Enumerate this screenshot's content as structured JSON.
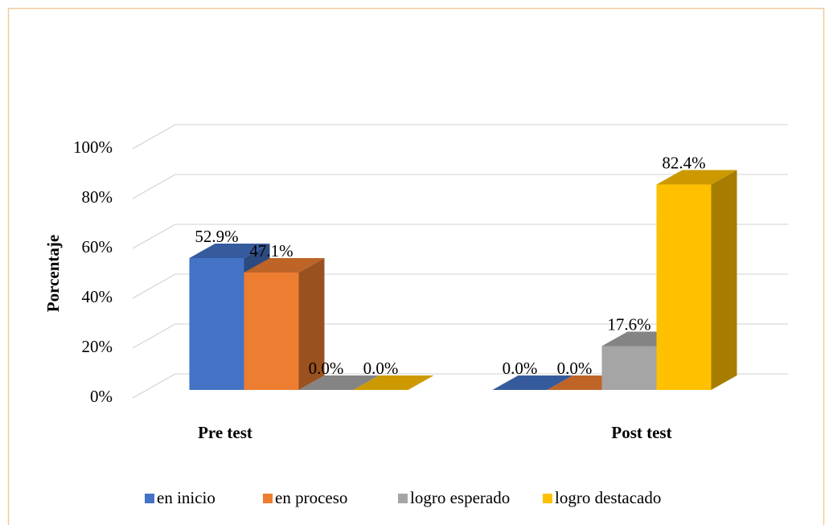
{
  "chart_data": {
    "type": "bar3d",
    "y_label": "Porcentaje",
    "categories": [
      "Pre test",
      "Post test"
    ],
    "series": [
      {
        "name": "en inicio",
        "color": "#4472c4",
        "values": [
          52.9,
          0.0
        ],
        "value_labels": [
          "52.9%",
          "0.0%"
        ]
      },
      {
        "name": "en proceso",
        "color": "#ed7d31",
        "values": [
          47.1,
          0.0
        ],
        "value_labels": [
          "47.1%",
          "0.0%"
        ]
      },
      {
        "name": "logro esperado",
        "color": "#a5a5a5",
        "values": [
          0.0,
          17.6
        ],
        "value_labels": [
          "0.0%",
          "17.6%"
        ]
      },
      {
        "name": "logro destacado",
        "color": "#ffc000",
        "values": [
          0.0,
          82.4
        ],
        "value_labels": [
          "0.0%",
          "82.4%"
        ]
      }
    ],
    "ylim": [
      0,
      100
    ],
    "yticks": [
      {
        "value": 0,
        "label": "0%"
      },
      {
        "value": 20,
        "label": "20%"
      },
      {
        "value": 40,
        "label": "40%"
      },
      {
        "value": 60,
        "label": "60%"
      },
      {
        "value": 80,
        "label": "80%"
      },
      {
        "value": 100,
        "label": "100%"
      }
    ],
    "grid": true,
    "legend": "bottom"
  }
}
